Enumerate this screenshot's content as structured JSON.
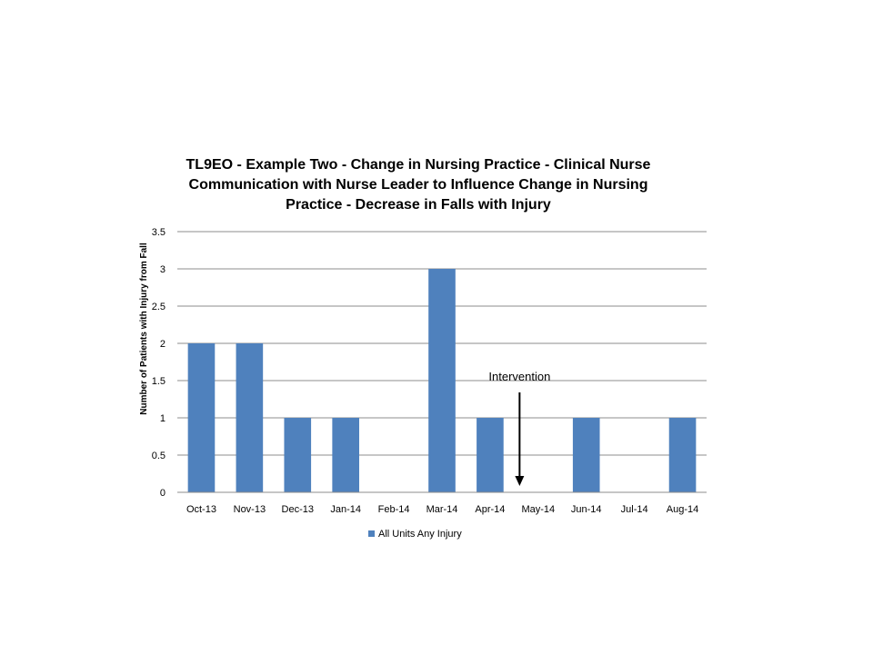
{
  "chart_data": {
    "type": "bar",
    "title": "TL9EO - Example Two - Change in Nursing Practice - Clinical Nurse Communication with Nurse Leader to Influence Change in Nursing Practice - Decrease in Falls with Injury",
    "ylabel": "Number of Patients with Injury from Fall",
    "xlabel": "",
    "categories": [
      "Oct-13",
      "Nov-13",
      "Dec-13",
      "Jan-14",
      "Feb-14",
      "Mar-14",
      "Apr-14",
      "May-14",
      "Jun-14",
      "Jul-14",
      "Aug-14"
    ],
    "series": [
      {
        "name": "All Units Any Injury",
        "values": [
          2,
          2,
          1,
          1,
          0,
          3,
          1,
          0,
          1,
          0,
          1
        ],
        "color": "#4F81BD"
      }
    ],
    "ylim": [
      0,
      3.5
    ],
    "yticks": [
      0,
      0.5,
      1,
      1.5,
      2,
      2.5,
      3,
      3.5
    ],
    "ytick_labels": [
      "0",
      "0.5",
      "1",
      "1.5",
      "2",
      "2.5",
      "3",
      "3.5"
    ],
    "grid": true,
    "legend_position": "bottom",
    "annotation": {
      "text": "Intervention",
      "at_category": "May-14",
      "arrow": "down"
    }
  }
}
